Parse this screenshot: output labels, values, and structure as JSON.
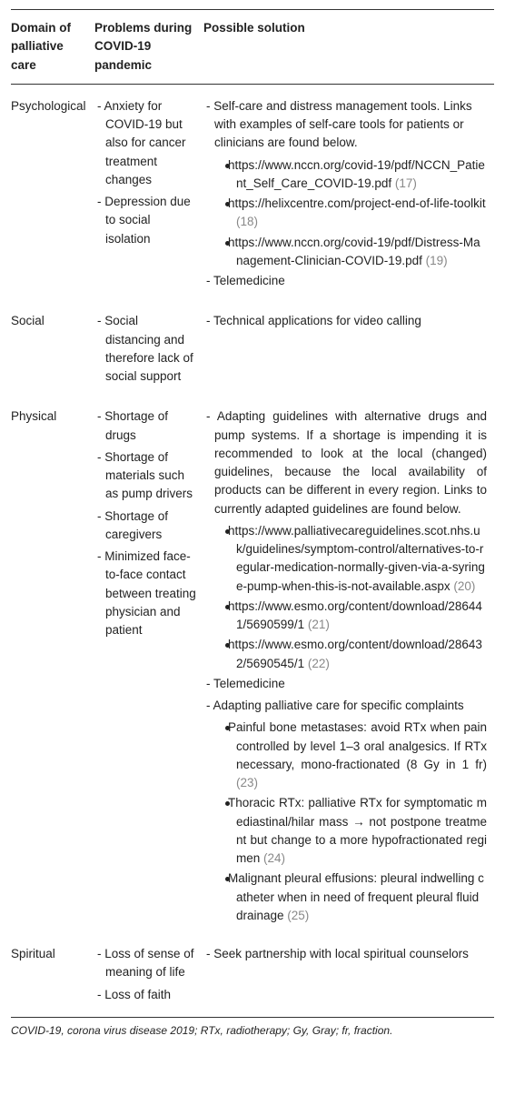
{
  "headers": [
    "Domain of palliative care",
    "Problems during COVID-19 pandemic",
    "Possible solution"
  ],
  "rows": [
    {
      "domain": "Psychological",
      "problems": [
        "Anxiety for COVID-19 but also for cancer treatment changes",
        "Depression due to social isolation"
      ],
      "solutions": [
        {
          "t": "Self-care and distress management tools. Links with examples of self-care tools for patients or clinicians are found below.",
          "bullets": [
            {
              "t": "https://www.nccn.org/covid-19/pdf/NCCN_Patient_Self_Care_COVID-19.pdf",
              "c": "(17)"
            },
            {
              "t": "https://helixcentre.com/project-end-of-life-toolkit",
              "c": "(18)"
            },
            {
              "t": "https://www.nccn.org/covid-19/pdf/Distress-Management-Clinician-COVID-19.pdf",
              "c": "(19)"
            }
          ]
        },
        {
          "t": "Telemedicine"
        }
      ]
    },
    {
      "domain": "Social",
      "problems": [
        "Social distancing and therefore lack of social support"
      ],
      "solutions": [
        {
          "t": "Technical applications for video calling"
        }
      ]
    },
    {
      "domain": "Physical",
      "problems": [
        "Shortage of drugs",
        "Shortage of materials such as pump drivers",
        "Shortage of caregivers",
        "Minimized face-to-face contact between treating physician and patient"
      ],
      "solutions": [
        {
          "t": "Adapting guidelines with alternative drugs and pump systems. If a shortage is impending it is recommended to look at the local (changed) guidelines, because the local availability of products can be different in every region. Links to currently adapted guidelines are found below.",
          "just": true,
          "bullets": [
            {
              "t": "https://www.palliativecareguidelines.scot.nhs.uk/guidelines/symptom-control/alternatives-to-regular-medication-normally-given-via-a-syringe-pump-when-this-is-not-available.aspx",
              "c": "(20)"
            },
            {
              "t": "https://www.esmo.org/content/download/286441/5690599/1",
              "c": "(21)"
            },
            {
              "t": "https://www.esmo.org/content/download/286432/5690545/1",
              "c": "(22)"
            }
          ]
        },
        {
          "t": "Telemedicine"
        },
        {
          "t": "Adapting palliative care for specific complaints",
          "just": true,
          "bullets": [
            {
              "t": "Painful bone metastases: avoid RTx when pain controlled by level 1–3 oral analgesics. If RTx necessary, mono-fractionated (8 Gy in 1 fr)",
              "c": "(23)",
              "just": true
            },
            {
              "t": "Thoracic RTx: palliative RTx for symptomatic mediastinal/hilar mass → not postpone treatment but change to a more hypofractionated regimen",
              "c": "(24)",
              "just": true
            },
            {
              "t": "Malignant pleural effusions: pleural indwelling catheter when in need of frequent pleural fluid drainage",
              "c": "(25)"
            }
          ]
        }
      ]
    },
    {
      "domain": "Spiritual",
      "problems": [
        "Loss of sense of meaning of life",
        "Loss of faith"
      ],
      "solutions": [
        {
          "t": "Seek partnership with local spiritual counselors"
        }
      ]
    }
  ],
  "abbr": "COVID-19, corona virus disease 2019; RTx, radiotherapy; Gy, Gray; fr, fraction."
}
